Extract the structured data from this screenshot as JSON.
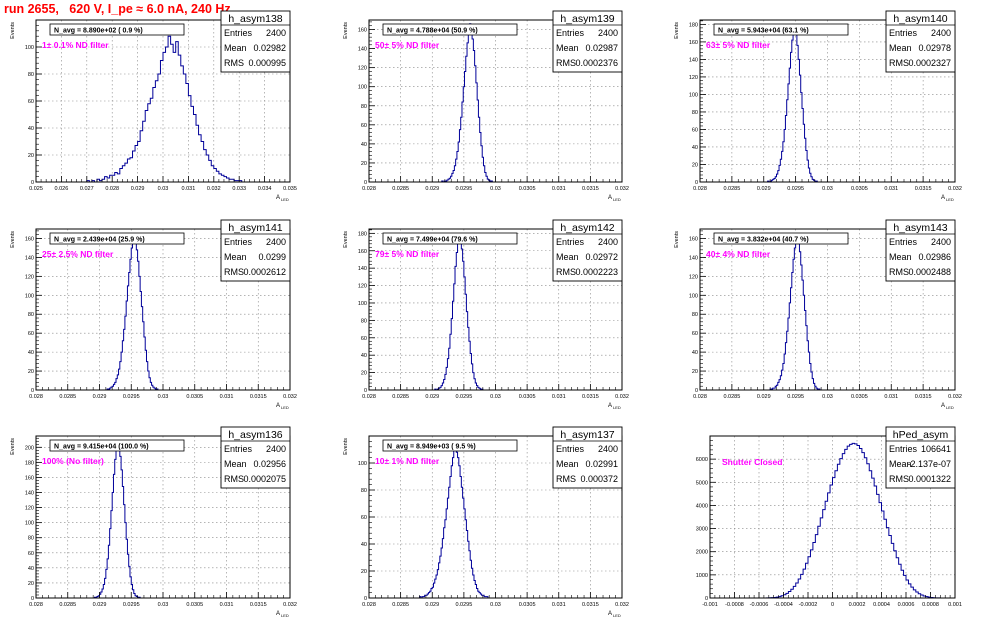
{
  "title": "run 2655,   620 V, I_pe ≈ 6.0 nA, 240 Hz",
  "colors": {
    "title": "#ff0000",
    "annotation": "#ff00ff",
    "histogram": "#000099",
    "frame": "#000000",
    "grid": "#888888"
  },
  "chart_data": [
    {
      "type": "bar",
      "name": "h_asym138",
      "stats": [
        [
          "Entries",
          "2400"
        ],
        [
          "Mean",
          "0.02982"
        ],
        [
          "RMS",
          "0.000995"
        ]
      ],
      "navg": "N_avg = 8.890e+02 ( 0.9 %)",
      "note": "1± 0.1% ND filter",
      "ylabel": "Events",
      "xlabel": "A",
      "xlabel_sub": "LED",
      "xlim": [
        0.025,
        0.035
      ],
      "ylim": [
        0,
        120
      ],
      "xticks": [
        "0.025",
        "0.026",
        "0.027",
        "0.028",
        "0.029",
        "0.03",
        "0.031",
        "0.032",
        "0.033",
        "0.034",
        "0.035"
      ],
      "yticks": [
        "0",
        "20",
        "40",
        "60",
        "80",
        "100"
      ],
      "grid": true,
      "x_start": 0.0258,
      "x_step": 0.0001,
      "values": [
        0,
        0,
        0,
        0,
        0,
        0,
        0,
        0,
        0,
        0,
        0,
        0,
        1,
        0,
        1,
        0,
        2,
        1,
        2,
        4,
        3,
        5,
        5,
        7,
        6,
        10,
        12,
        14,
        17,
        18,
        23,
        27,
        30,
        38,
        45,
        53,
        58,
        62,
        70,
        75,
        80,
        90,
        96,
        100,
        108,
        102,
        96,
        104,
        94,
        86,
        80,
        73,
        64,
        56,
        50,
        42,
        35,
        30,
        24,
        20,
        16,
        12,
        10,
        8,
        6,
        5,
        4,
        3,
        2,
        2,
        1,
        1,
        1,
        0,
        0,
        0,
        0
      ]
    },
    {
      "type": "bar",
      "name": "h_asym139",
      "stats": [
        [
          "Entries",
          "2400"
        ],
        [
          "Mean",
          "0.02987"
        ],
        [
          "RMS",
          "0.0002376"
        ]
      ],
      "navg": "N_avg = 4.788e+04 (50.9 %)",
      "note": "50± 5% ND filter",
      "ylabel": "Events",
      "xlabel": "A",
      "xlabel_sub": "LED",
      "xlim": [
        0.028,
        0.032
      ],
      "ylim": [
        0,
        170
      ],
      "xticks": [
        "0.028",
        "0.0285",
        "0.029",
        "0.0295",
        "0.03",
        "0.0305",
        "0.031",
        "0.0315",
        "0.032"
      ],
      "yticks": [
        "0",
        "20",
        "40",
        "60",
        "80",
        "100",
        "120",
        "140",
        "160"
      ],
      "grid": true,
      "x_start": 0.02915,
      "x_step": 2e-05,
      "values": [
        1,
        0,
        1,
        1,
        2,
        3,
        4,
        6,
        9,
        12,
        17,
        24,
        32,
        42,
        55,
        68,
        84,
        100,
        116,
        132,
        146,
        158,
        166,
        160,
        150,
        138,
        122,
        104,
        86,
        68,
        52,
        38,
        26,
        17,
        10,
        6,
        3,
        2,
        1,
        1
      ]
    },
    {
      "type": "bar",
      "name": "h_asym140",
      "stats": [
        [
          "Entries",
          "2400"
        ],
        [
          "Mean",
          "0.02978"
        ],
        [
          "RMS",
          "0.0002327"
        ]
      ],
      "navg": "N_avg = 5.943e+04 (63.1 %)",
      "note": "63± 5% ND filter",
      "ylabel": "Events",
      "xlabel": "A",
      "xlabel_sub": "LED",
      "xlim": [
        0.028,
        0.032
      ],
      "ylim": [
        0,
        185
      ],
      "xticks": [
        "0.028",
        "0.0285",
        "0.029",
        "0.0295",
        "0.03",
        "0.0305",
        "0.031",
        "0.0315",
        "0.032"
      ],
      "yticks": [
        "0",
        "20",
        "40",
        "60",
        "80",
        "100",
        "120",
        "140",
        "160",
        "180"
      ],
      "grid": true,
      "x_start": 0.02906,
      "x_step": 2e-05,
      "values": [
        1,
        0,
        1,
        2,
        3,
        4,
        6,
        9,
        13,
        19,
        26,
        35,
        46,
        60,
        76,
        94,
        112,
        130,
        148,
        162,
        172,
        176,
        168,
        156,
        140,
        122,
        102,
        84,
        66,
        50,
        36,
        25,
        16,
        10,
        6,
        3,
        2,
        1,
        1,
        0
      ]
    },
    {
      "type": "bar",
      "name": "h_asym141",
      "stats": [
        [
          "Entries",
          "2400"
        ],
        [
          "Mean",
          "0.0299"
        ],
        [
          "RMS",
          "0.0002612"
        ]
      ],
      "navg": "N_avg = 2.439e+04 (25.9 %)",
      "note": "25± 2.5% ND filter",
      "ylabel": "Events",
      "xlabel": "A",
      "xlabel_sub": "LED",
      "xlim": [
        0.028,
        0.032
      ],
      "ylim": [
        0,
        170
      ],
      "xticks": [
        "0.028",
        "0.0285",
        "0.029",
        "0.0295",
        "0.03",
        "0.0305",
        "0.031",
        "0.0315",
        "0.032"
      ],
      "yticks": [
        "0",
        "20",
        "40",
        "60",
        "80",
        "100",
        "120",
        "140",
        "160"
      ],
      "grid": true,
      "x_start": 0.02912,
      "x_step": 2e-05,
      "values": [
        1,
        1,
        2,
        3,
        4,
        6,
        8,
        12,
        16,
        22,
        30,
        40,
        52,
        64,
        78,
        94,
        110,
        124,
        138,
        150,
        158,
        162,
        156,
        148,
        136,
        120,
        104,
        88,
        72,
        56,
        42,
        30,
        20,
        13,
        8,
        5,
        3,
        2,
        1,
        1
      ]
    },
    {
      "type": "bar",
      "name": "h_asym142",
      "stats": [
        [
          "Entries",
          "2400"
        ],
        [
          "Mean",
          "0.02972"
        ],
        [
          "RMS",
          "0.0002223"
        ]
      ],
      "navg": "N_avg = 7.499e+04 (79.6 %)",
      "note": "79± 5% ND filter",
      "ylabel": "Events",
      "xlabel": "A",
      "xlabel_sub": "LED",
      "xlim": [
        0.028,
        0.032
      ],
      "ylim": [
        0,
        185
      ],
      "xticks": [
        "0.028",
        "0.0285",
        "0.029",
        "0.0295",
        "0.03",
        "0.0305",
        "0.031",
        "0.0315",
        "0.032"
      ],
      "yticks": [
        "0",
        "20",
        "40",
        "60",
        "80",
        "100",
        "120",
        "140",
        "160",
        "180"
      ],
      "grid": true,
      "x_start": 0.02904,
      "x_step": 2e-05,
      "values": [
        1,
        0,
        1,
        2,
        3,
        5,
        8,
        12,
        18,
        26,
        36,
        48,
        64,
        82,
        102,
        122,
        142,
        158,
        170,
        176,
        172,
        162,
        148,
        130,
        110,
        90,
        72,
        56,
        42,
        30,
        20,
        13,
        8,
        5,
        3,
        2,
        1,
        1,
        0,
        0
      ]
    },
    {
      "type": "bar",
      "name": "h_asym143",
      "stats": [
        [
          "Entries",
          "2400"
        ],
        [
          "Mean",
          "0.02986"
        ],
        [
          "RMS",
          "0.0002488"
        ]
      ],
      "navg": "N_avg = 3.832e+04 (40.7 %)",
      "note": "40± 4% ND filter",
      "ylabel": "Events",
      "xlabel": "A",
      "xlabel_sub": "LED",
      "xlim": [
        0.028,
        0.032
      ],
      "ylim": [
        0,
        170
      ],
      "xticks": [
        "0.028",
        "0.0285",
        "0.029",
        "0.0295",
        "0.03",
        "0.0305",
        "0.031",
        "0.0315",
        "0.032"
      ],
      "yticks": [
        "0",
        "20",
        "40",
        "60",
        "80",
        "100",
        "120",
        "140",
        "160"
      ],
      "grid": true,
      "x_start": 0.0291,
      "x_step": 2e-05,
      "values": [
        1,
        1,
        2,
        2,
        4,
        5,
        8,
        11,
        15,
        21,
        28,
        38,
        50,
        62,
        76,
        92,
        108,
        124,
        138,
        150,
        160,
        162,
        156,
        146,
        132,
        116,
        100,
        84,
        68,
        52,
        40,
        28,
        19,
        12,
        7,
        4,
        2,
        1,
        1,
        0
      ]
    },
    {
      "type": "bar",
      "name": "h_asym136",
      "stats": [
        [
          "Entries",
          "2400"
        ],
        [
          "Mean",
          "0.02956"
        ],
        [
          "RMS",
          "0.0002075"
        ]
      ],
      "navg": "N_avg = 9.415e+04 (100.0 %)",
      "note": "100% (No filter)",
      "ylabel": "Events",
      "xlabel": "A",
      "xlabel_sub": "LED",
      "xlim": [
        0.028,
        0.032
      ],
      "ylim": [
        0,
        215
      ],
      "xticks": [
        "0.028",
        "0.0285",
        "0.029",
        "0.0295",
        "0.03",
        "0.0305",
        "0.031",
        "0.0315",
        "0.032"
      ],
      "yticks": [
        "0",
        "20",
        "40",
        "60",
        "80",
        "100",
        "120",
        "140",
        "160",
        "180",
        "200"
      ],
      "grid": true,
      "x_start": 0.02892,
      "x_step": 2e-05,
      "values": [
        1,
        1,
        2,
        3,
        5,
        8,
        12,
        18,
        26,
        38,
        52,
        70,
        92,
        116,
        140,
        164,
        184,
        198,
        206,
        200,
        188,
        170,
        148,
        124,
        100,
        78,
        58,
        42,
        28,
        18,
        11,
        6,
        3,
        2,
        1,
        1,
        0,
        0,
        0,
        0
      ]
    },
    {
      "type": "bar",
      "name": "h_asym137",
      "stats": [
        [
          "Entries",
          "2400"
        ],
        [
          "Mean",
          "0.02991"
        ],
        [
          "RMS",
          "0.000372"
        ]
      ],
      "navg": "N_avg = 8.949e+03 ( 9.5 %)",
      "note": "10± 1% ND filter",
      "ylabel": "Events",
      "xlabel": "A",
      "xlabel_sub": "LED",
      "xlim": [
        0.028,
        0.032
      ],
      "ylim": [
        0,
        120
      ],
      "xticks": [
        "0.028",
        "0.0285",
        "0.029",
        "0.0295",
        "0.03",
        "0.0305",
        "0.031",
        "0.0315",
        "0.032"
      ],
      "yticks": [
        "0",
        "20",
        "40",
        "60",
        "80",
        "100"
      ],
      "grid": true,
      "x_start": 0.0288,
      "x_step": 2e-05,
      "values": [
        1,
        0,
        1,
        1,
        2,
        2,
        3,
        4,
        5,
        7,
        8,
        11,
        14,
        17,
        21,
        26,
        31,
        37,
        44,
        52,
        58,
        66,
        74,
        82,
        90,
        98,
        104,
        110,
        112,
        108,
        104,
        98,
        90,
        82,
        74,
        66,
        58,
        50,
        42,
        35,
        28,
        22,
        17,
        13,
        10,
        7,
        5,
        4,
        3,
        2,
        2,
        1,
        1,
        1,
        0,
        0,
        0,
        0,
        0,
        0
      ]
    },
    {
      "type": "bar",
      "name": "hPed_asym",
      "stats": [
        [
          "Entries",
          "106641"
        ],
        [
          "Mean",
          "-2.137e-07"
        ],
        [
          "RMS",
          "0.0001322"
        ]
      ],
      "navg": "",
      "note": "Shutter Closed",
      "ylabel": "",
      "xlabel": "",
      "xlabel_sub": "",
      "xlim": [
        -0.001,
        0.001
      ],
      "ylim": [
        0,
        7000
      ],
      "xticks": [
        "-0.001",
        "-0.0008",
        "-0.0006",
        "-0.0004",
        "-0.0002",
        "0",
        "0.0002",
        "0.0004",
        "0.0006",
        "0.0008",
        "0.001"
      ],
      "yticks": [
        "0",
        "1000",
        "2000",
        "3000",
        "4000",
        "5000",
        "6000"
      ],
      "grid": true,
      "x_start": -0.00056,
      "x_step": 2e-05,
      "values": [
        2,
        4,
        8,
        14,
        24,
        40,
        62,
        96,
        140,
        200,
        280,
        380,
        500,
        650,
        820,
        1020,
        1250,
        1500,
        1780,
        2080,
        2400,
        2740,
        3100,
        3460,
        3820,
        4180,
        4540,
        4880,
        5200,
        5500,
        5780,
        6020,
        6240,
        6420,
        6560,
        6640,
        6680,
        6660,
        6590,
        6460,
        6280,
        6060,
        5800,
        5500,
        5180,
        4840,
        4480,
        4120,
        3760,
        3400,
        3040,
        2700,
        2360,
        2040,
        1740,
        1460,
        1200,
        980,
        780,
        610,
        470,
        350,
        260,
        186,
        130,
        88,
        58,
        36,
        22,
        12,
        6,
        3,
        1
      ]
    }
  ]
}
